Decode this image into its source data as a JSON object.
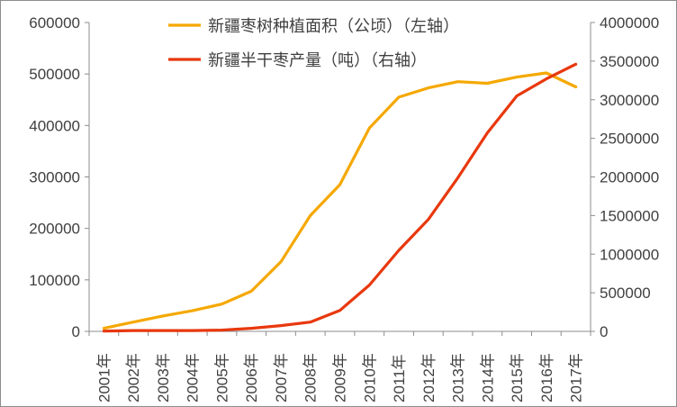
{
  "chart_data": {
    "type": "line",
    "title": "",
    "categories": [
      "2001年",
      "2002年",
      "2003年",
      "2004年",
      "2005年",
      "2006年",
      "2007年",
      "2008年",
      "2009年",
      "2010年",
      "2011年",
      "2012年",
      "2013年",
      "2014年",
      "2015年",
      "2016年",
      "2017年"
    ],
    "series": [
      {
        "name": "新疆枣树种植面积（公顷）（左轴）",
        "axis": "left",
        "color": "#f5a800",
        "values": [
          6000,
          18000,
          30000,
          40000,
          53000,
          78000,
          135000,
          225000,
          285000,
          395000,
          455000,
          473000,
          485000,
          482000,
          494000,
          502000,
          475000
        ]
      },
      {
        "name": "新疆半干枣产量（吨）（右轴）",
        "axis": "right",
        "color": "#e8380d",
        "values": [
          4000,
          10000,
          10000,
          10000,
          16000,
          40000,
          75000,
          120000,
          270000,
          600000,
          1050000,
          1450000,
          1990000,
          2570000,
          3050000,
          3270000,
          3460000
        ]
      }
    ],
    "y_left": {
      "ylim": [
        0,
        600000
      ],
      "ticks": [
        "0",
        "100000",
        "200000",
        "300000",
        "400000",
        "500000",
        "600000"
      ]
    },
    "y_right": {
      "ylim": [
        0,
        4000000
      ],
      "ticks": [
        "0",
        "500000",
        "1000000",
        "1500000",
        "2000000",
        "2500000",
        "3000000",
        "3500000",
        "4000000"
      ]
    },
    "grid": false,
    "legend_position": "top-center"
  }
}
